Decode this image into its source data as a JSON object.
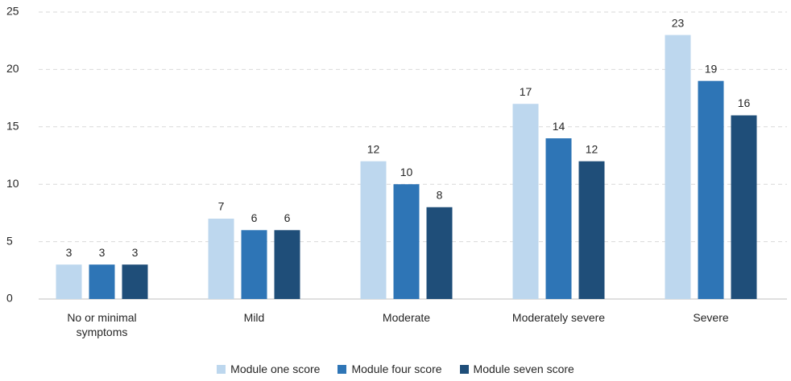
{
  "chart_data": {
    "type": "bar",
    "categories": [
      "No or minimal symptoms",
      "Mild",
      "Moderate",
      "Moderately severe",
      "Severe"
    ],
    "series": [
      {
        "name": "Module one score",
        "color": "#bdd7ee",
        "values": [
          3,
          7,
          12,
          17,
          23
        ]
      },
      {
        "name": "Module four score",
        "color": "#2e75b6",
        "values": [
          3,
          6,
          10,
          14,
          19
        ]
      },
      {
        "name": "Module seven score",
        "color": "#1f4e79",
        "values": [
          3,
          6,
          8,
          12,
          16
        ]
      }
    ],
    "ylim": [
      0,
      25
    ],
    "yticks": [
      0,
      5,
      10,
      15,
      20,
      25
    ],
    "grid": true,
    "legend": "bottom"
  }
}
